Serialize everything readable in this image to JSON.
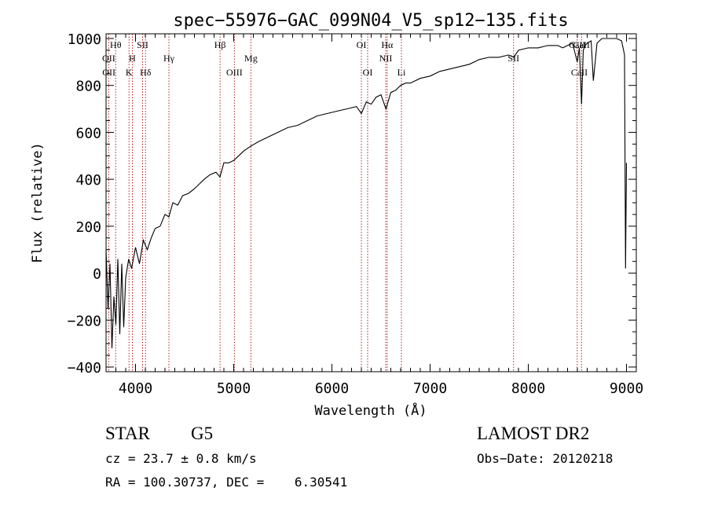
{
  "chart_data": {
    "type": "line",
    "title": "spec−55976−GAC_099N04_V5_sp12−135.fits",
    "xlabel": "Wavelength (Å)",
    "ylabel": "Flux (relative)",
    "xlim": [
      3700,
      9100
    ],
    "ylim": [
      -420,
      1020
    ],
    "x_ticks": [
      4000,
      5000,
      6000,
      7000,
      8000,
      9000
    ],
    "x_tick_labels": [
      "4000",
      "5000",
      "6000",
      "7000",
      "8000",
      "9000"
    ],
    "y_ticks": [
      -400,
      -200,
      0,
      200,
      400,
      600,
      800,
      1000
    ],
    "y_tick_labels": [
      "−400",
      "−200",
      "0",
      "200",
      "400",
      "600",
      "800",
      "1000"
    ],
    "grid": false,
    "series": [
      {
        "x": [
          3700,
          3720,
          3740,
          3760,
          3780,
          3800,
          3820,
          3840,
          3860,
          3880,
          3900,
          3930,
          3960,
          4000,
          4040,
          4080,
          4120,
          4160,
          4200,
          4250,
          4300,
          4340,
          4380,
          4430,
          4480,
          4540,
          4600,
          4650,
          4700,
          4760,
          4820,
          4860,
          4900,
          4950,
          5000,
          5050,
          5100,
          5170,
          5250,
          5350,
          5450,
          5550,
          5650,
          5750,
          5850,
          5950,
          6050,
          6150,
          6250,
          6300,
          6350,
          6400,
          6450,
          6500,
          6550,
          6600,
          6650,
          6700,
          6750,
          6800,
          6900,
          7000,
          7100,
          7200,
          7300,
          7400,
          7500,
          7600,
          7700,
          7800,
          7850,
          7900,
          8000,
          8100,
          8200,
          8300,
          8350,
          8400,
          8450,
          8498,
          8520,
          8542,
          8560,
          8580,
          8600,
          8640,
          8662,
          8700,
          8750,
          8800,
          8850,
          8900,
          8950,
          8980,
          8990,
          9000
        ],
        "y": [
          100,
          -150,
          40,
          -320,
          -100,
          -220,
          60,
          -260,
          40,
          -230,
          -20,
          60,
          20,
          110,
          40,
          140,
          100,
          150,
          190,
          200,
          250,
          240,
          300,
          290,
          330,
          340,
          360,
          380,
          400,
          420,
          430,
          410,
          470,
          470,
          480,
          500,
          520,
          540,
          560,
          580,
          600,
          620,
          630,
          650,
          670,
          680,
          690,
          700,
          710,
          680,
          730,
          720,
          750,
          760,
          700,
          770,
          780,
          800,
          810,
          810,
          830,
          840,
          860,
          870,
          880,
          890,
          910,
          920,
          920,
          930,
          920,
          950,
          960,
          960,
          970,
          970,
          960,
          970,
          980,
          900,
          960,
          720,
          950,
          970,
          980,
          990,
          820,
          980,
          1000,
          1000,
          1000,
          1000,
          990,
          930,
          20,
          470
        ]
      }
    ],
    "annotations": [
      {
        "label": "Hθ",
        "x": 3798,
        "row": 0
      },
      {
        "label": "OII",
        "x": 3727,
        "row": 1
      },
      {
        "label": "OII",
        "x": 3729,
        "row": 2
      },
      {
        "label": "H",
        "x": 3968,
        "row": 1
      },
      {
        "label": "K",
        "x": 3934,
        "row": 2
      },
      {
        "label": "SII",
        "x": 4072,
        "row": 0
      },
      {
        "label": "Hδ",
        "x": 4102,
        "row": 2
      },
      {
        "label": "Hγ",
        "x": 4340,
        "row": 1
      },
      {
        "label": "Hβ",
        "x": 4861,
        "row": 0
      },
      {
        "label": "OIII",
        "x": 5007,
        "row": 2
      },
      {
        "label": "Mg",
        "x": 5175,
        "row": 1
      },
      {
        "label": "OI",
        "x": 6300,
        "row": 0
      },
      {
        "label": "OI",
        "x": 6364,
        "row": 2
      },
      {
        "label": "Hα",
        "x": 6563,
        "row": 0
      },
      {
        "label": "NII",
        "x": 6548,
        "row": 1
      },
      {
        "label": "Li",
        "x": 6708,
        "row": 2
      },
      {
        "label": "SII",
        "x": 7850,
        "row": 1
      },
      {
        "label": "CaII",
        "x": 8498,
        "row": 0
      },
      {
        "label": "CaII",
        "x": 8542,
        "row": 0
      },
      {
        "label": "CaII",
        "x": 8520,
        "row": 2
      }
    ],
    "line_markers": [
      3727,
      3798,
      3934,
      3968,
      4072,
      4102,
      4340,
      4861,
      5007,
      5175,
      6300,
      6364,
      6548,
      6563,
      6708,
      7850,
      8498,
      8542
    ],
    "marker_color": "#b22222"
  },
  "info": {
    "object_type": "STAR",
    "subclass": "G5",
    "survey": "LAMOST DR2",
    "redshift": "cz = 23.7 ± 0.8 km/s",
    "obs_date": "Obs−Date: 20120218",
    "coords": "RA = 100.30737, DEC =    6.30541"
  }
}
